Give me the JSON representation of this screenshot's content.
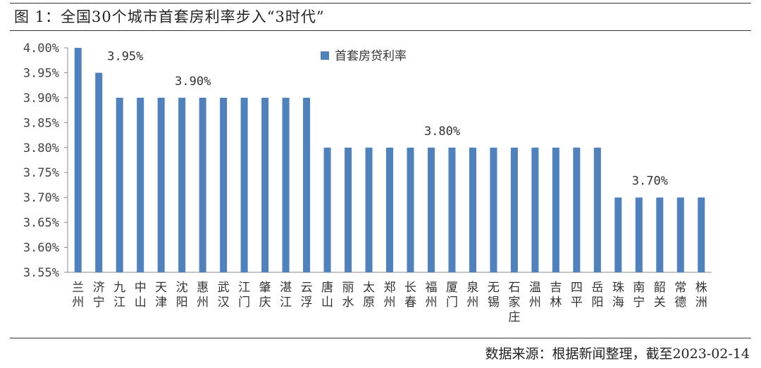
{
  "header": {
    "title": "图 1：全国30个城市首套房利率步入“3时代”"
  },
  "footer": {
    "source": "数据来源：根据新闻整理，截至2023-02-14"
  },
  "chart_data": {
    "type": "bar",
    "ylim": [
      3.55,
      4.0
    ],
    "yticks": [
      3.55,
      3.6,
      3.65,
      3.7,
      3.75,
      3.8,
      3.85,
      3.9,
      3.95,
      4.0
    ],
    "ytick_labels": [
      "3.55%",
      "3.60%",
      "3.65%",
      "3.70%",
      "3.75%",
      "3.80%",
      "3.85%",
      "3.90%",
      "3.95%",
      "4.00%"
    ],
    "grid": false,
    "legend_position": "top-center",
    "color": "#4f81bd",
    "categories": [
      "兰州",
      "济宁",
      "九江",
      "中山",
      "天津",
      "沈阳",
      "惠州",
      "武汉",
      "江门",
      "肇庆",
      "湛江",
      "云浮",
      "唐山",
      "丽水",
      "太原",
      "郑州",
      "长春",
      "福州",
      "厦门",
      "泉州",
      "无锡",
      "石家庄",
      "温州",
      "吉林",
      "四平",
      "岳阳",
      "珠海",
      "南宁",
      "韶关",
      "常德",
      "株洲"
    ],
    "series": [
      {
        "name": "首套房贷利率",
        "values": [
          4.0,
          3.95,
          3.9,
          3.9,
          3.9,
          3.9,
          3.9,
          3.9,
          3.9,
          3.9,
          3.9,
          3.9,
          3.8,
          3.8,
          3.8,
          3.8,
          3.8,
          3.8,
          3.8,
          3.8,
          3.8,
          3.8,
          3.8,
          3.8,
          3.8,
          3.8,
          3.7,
          3.7,
          3.7,
          3.7,
          3.7
        ]
      }
    ],
    "annotations": [
      {
        "text": "3.95%",
        "category": "济宁",
        "value": 3.95
      },
      {
        "text": "3.90%",
        "category": "沈阳",
        "value": 3.9
      },
      {
        "text": "3.80%",
        "category": "福州",
        "value": 3.8
      },
      {
        "text": "3.70%",
        "category": "南宁",
        "value": 3.7
      }
    ]
  }
}
